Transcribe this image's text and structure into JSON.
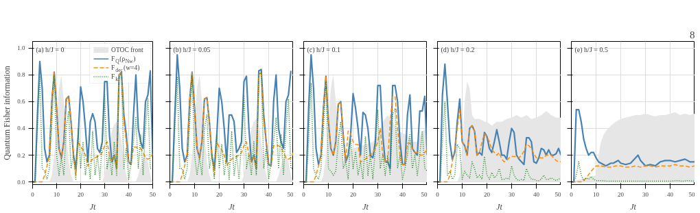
{
  "chart_data": [
    {
      "type": "line",
      "title": "(a) h/J = 0",
      "xlabel": "Jt",
      "ylabel": "Quantum Fisher information",
      "xlim": [
        0,
        50
      ],
      "xticks": [
        0,
        10,
        20,
        30,
        40,
        50
      ],
      "ylim": [
        -0.02,
        1.05
      ],
      "yticks": [
        {
          "value": 0,
          "label": "0.0"
        },
        {
          "value": 0.2,
          "label": "0.2"
        },
        {
          "value": 0.4,
          "label": "0.4"
        },
        {
          "value": 0.6,
          "label": "0.6"
        },
        {
          "value": 0.8,
          "label": "0.8"
        },
        {
          "value": 1,
          "label": "1.0"
        }
      ],
      "grid": true,
      "legend": "top right",
      "x": [
        0,
        1,
        2,
        3,
        4,
        5,
        6,
        7,
        8,
        9,
        10,
        11,
        12,
        13,
        14,
        15,
        16,
        17,
        18,
        19,
        20,
        21,
        22,
        23,
        24,
        25,
        26,
        27,
        28,
        29,
        30,
        31,
        32,
        33,
        34,
        35,
        36,
        37,
        38,
        39,
        40,
        41,
        42,
        43,
        44,
        45,
        46,
        47,
        48,
        49,
        50
      ],
      "series": [
        {
          "name": "OTOC front",
          "type": "area",
          "color": "#e6e6e6",
          "x": [
            0,
            7,
            8,
            9,
            10,
            11,
            12,
            13,
            14,
            15,
            16,
            17,
            29,
            30,
            31,
            32,
            33,
            34,
            35,
            36,
            37,
            38,
            39,
            40,
            43,
            44,
            45,
            46,
            47,
            48,
            49,
            50
          ],
          "values": [
            0,
            0,
            0.05,
            0.2,
            0.45,
            0.7,
            0.8,
            0.6,
            0.35,
            0.15,
            0.05,
            0,
            0,
            0.05,
            0.15,
            0.28,
            0.38,
            0.43,
            0.45,
            0.4,
            0.3,
            0.15,
            0.05,
            0,
            0,
            0.05,
            0.12,
            0.18,
            0.2,
            0.15,
            0.05,
            0
          ]
        },
        {
          "name": "F$_{Q}$(ρ$_{Nw}$)",
          "line_style": "solid",
          "color": "#4682b4",
          "values": [
            0,
            0,
            0.5,
            0.9,
            0.7,
            0.25,
            0.15,
            0.2,
            0.6,
            0.82,
            0.55,
            0.25,
            0.18,
            0.3,
            0.62,
            0.64,
            0.45,
            0.2,
            0.1,
            0.35,
            0.71,
            0.6,
            0.4,
            0.15,
            0.45,
            0.51,
            0.45,
            0.25,
            0.22,
            0.3,
            0.75,
            0.75,
            0.35,
            0.15,
            0.2,
            0.1,
            0.8,
            0.82,
            0.5,
            0.35,
            0.15,
            0.13,
            0.5,
            0.8,
            0.4,
            0.3,
            0.25,
            0.6,
            0.65,
            0.83,
            0.2
          ]
        },
        {
          "name": "F$_{dec}$(w=4)",
          "line_style": "dashed",
          "color": "#ff8c00",
          "values": [
            0,
            0,
            0,
            0,
            0,
            0.05,
            0.12,
            0.2,
            0.6,
            0.82,
            0.55,
            0.25,
            0.18,
            0.3,
            0.62,
            0.64,
            0.45,
            0.2,
            0.05,
            0.3,
            0.26,
            0.24,
            0.2,
            0.12,
            0.15,
            0.17,
            0.18,
            0.19,
            0.2,
            0.22,
            0.27,
            0.3,
            0.2,
            0.15,
            0.2,
            0.1,
            0.8,
            0.82,
            0.45,
            0.3,
            0.15,
            0.13,
            0.26,
            0.26,
            0.25,
            0.25,
            0.22,
            0.18,
            0.17,
            0.18,
            0.21
          ]
        },
        {
          "name": "F$_{k}$",
          "line_style": "dotted",
          "color": "#228b22",
          "values": [
            0,
            0,
            0.4,
            0.79,
            0.1,
            0.08,
            0.02,
            0.1,
            0.43,
            0.8,
            0.2,
            0.05,
            0.18,
            0.05,
            0.4,
            0.53,
            0.1,
            0.2,
            0.02,
            0.4,
            0.1,
            0.3,
            0.05,
            0.2,
            0.02,
            0.38,
            0.05,
            0.2,
            0.02,
            0.3,
            0.65,
            0.1,
            0.2,
            0.05,
            0.3,
            0.05,
            0.78,
            0.81,
            0.1,
            0.25,
            0.02,
            0.15,
            0.3,
            0.48,
            0.1,
            0.35,
            0.05,
            0.4,
            0.62,
            0.1,
            0.1
          ]
        }
      ]
    },
    {
      "type": "line",
      "title": "(b) h/J = 0.05",
      "xlabel": "Jt",
      "xlim": [
        0,
        50
      ],
      "xticks": [
        0,
        10,
        20,
        30,
        40,
        50
      ],
      "ylim": [
        -0.02,
        1.05
      ],
      "yticks": [
        0,
        0.2,
        0.4,
        0.6,
        0.8,
        1
      ],
      "grid": true,
      "tick_labels": "x",
      "x": [
        0,
        1,
        2,
        3,
        4,
        5,
        6,
        7,
        8,
        9,
        10,
        11,
        12,
        13,
        14,
        15,
        16,
        17,
        18,
        19,
        20,
        21,
        22,
        23,
        24,
        25,
        26,
        27,
        28,
        29,
        30,
        31,
        32,
        33,
        34,
        35,
        36,
        37,
        38,
        39,
        40,
        41,
        42,
        43,
        44,
        45,
        46,
        47,
        48,
        49,
        50
      ],
      "series": [
        {
          "type": "area",
          "color": "#e6e6e6",
          "x": [
            0,
            7,
            8,
            9,
            10,
            11,
            12,
            13,
            14,
            15,
            16,
            17,
            29,
            30,
            31,
            32,
            33,
            34,
            35,
            36,
            37,
            38,
            39,
            40,
            43,
            44,
            45,
            46,
            47,
            48,
            49,
            50
          ],
          "values": [
            0,
            0,
            0.05,
            0.2,
            0.45,
            0.7,
            0.8,
            0.6,
            0.35,
            0.15,
            0.05,
            0,
            0,
            0.05,
            0.15,
            0.28,
            0.4,
            0.45,
            0.47,
            0.42,
            0.3,
            0.15,
            0.05,
            0,
            0,
            0.05,
            0.12,
            0.18,
            0.2,
            0.15,
            0.05,
            0
          ]
        },
        {
          "line_style": "solid",
          "color": "#4682b4",
          "values": [
            0,
            0,
            0.5,
            0.95,
            0.7,
            0.25,
            0.15,
            0.2,
            0.6,
            0.82,
            0.55,
            0.25,
            0.18,
            0.3,
            0.62,
            0.63,
            0.45,
            0.2,
            0.1,
            0.35,
            0.7,
            0.6,
            0.4,
            0.15,
            0.5,
            0.5,
            0.45,
            0.22,
            0.25,
            0.3,
            0.75,
            0.79,
            0.4,
            0.15,
            0.2,
            0.1,
            0.83,
            0.84,
            0.5,
            0.3,
            0.13,
            0.12,
            0.6,
            0.8,
            0.4,
            0.3,
            0.25,
            0.6,
            0.65,
            0.83,
            null
          ]
        },
        {
          "line_style": "dashed",
          "color": "#ff8c00",
          "values": [
            0,
            0,
            0,
            0,
            0,
            0.05,
            0.12,
            0.2,
            0.6,
            0.82,
            0.55,
            0.25,
            0.18,
            0.3,
            0.62,
            0.63,
            0.45,
            0.2,
            0.05,
            0.3,
            0.26,
            0.24,
            0.2,
            0.12,
            0.15,
            0.17,
            0.18,
            0.19,
            0.2,
            0.22,
            0.27,
            0.3,
            0.2,
            0.15,
            0.2,
            0.1,
            0.8,
            0.82,
            0.45,
            0.3,
            0.13,
            0.12,
            0.27,
            0.27,
            0.27,
            0.26,
            0.22,
            0.18,
            0.17,
            0.18,
            0.22
          ]
        },
        {
          "line_style": "dotted",
          "color": "#228b22",
          "values": [
            0,
            0,
            0.4,
            0.78,
            0.1,
            0.1,
            0.02,
            0.1,
            0.43,
            0.8,
            0.2,
            0.05,
            0.18,
            0.05,
            0.4,
            0.5,
            0.1,
            0.2,
            0.02,
            0.35,
            0.1,
            0.28,
            0.05,
            0.2,
            0.02,
            0.38,
            0.05,
            0.2,
            0.02,
            0.3,
            0.64,
            0.1,
            0.2,
            0.05,
            0.3,
            0.05,
            0.8,
            0.82,
            0.1,
            0.25,
            0.02,
            0.15,
            0.3,
            0.48,
            0.1,
            0.35,
            0.05,
            0.4,
            0.62,
            0.1,
            0.1
          ]
        }
      ]
    },
    {
      "type": "line",
      "title": "(c) h/J = 0.1",
      "xlabel": "Jt",
      "xlim": [
        0,
        50
      ],
      "xticks": [
        0,
        10,
        20,
        30,
        40,
        50
      ],
      "ylim": [
        -0.02,
        1.05
      ],
      "yticks": [
        0,
        0.2,
        0.4,
        0.6,
        0.8,
        1
      ],
      "grid": true,
      "tick_labels": "x",
      "x": [
        0,
        1,
        2,
        3,
        4,
        5,
        6,
        7,
        8,
        9,
        10,
        11,
        12,
        13,
        14,
        15,
        16,
        17,
        18,
        19,
        20,
        21,
        22,
        23,
        24,
        25,
        26,
        27,
        28,
        29,
        30,
        31,
        32,
        33,
        34,
        35,
        36,
        37,
        38,
        39,
        40,
        41,
        42,
        43,
        44,
        45,
        46,
        47,
        48,
        49,
        50
      ],
      "series": [
        {
          "type": "area",
          "color": "#e6e6e6",
          "x": [
            0,
            7,
            8,
            9,
            10,
            11,
            12,
            13,
            14,
            15,
            16,
            17,
            18,
            20,
            25,
            28,
            30,
            32,
            34,
            36,
            38,
            42,
            44,
            46,
            48,
            50
          ],
          "values": [
            0,
            0,
            0.05,
            0.2,
            0.45,
            0.7,
            0.8,
            0.6,
            0.4,
            0.25,
            0.15,
            0.2,
            0.2,
            0.25,
            0.28,
            0.3,
            0.35,
            0.45,
            0.5,
            0.45,
            0.38,
            0.35,
            0.3,
            0.3,
            0.38,
            0.4
          ]
        },
        {
          "line_style": "solid",
          "color": "#4682b4",
          "values": [
            0,
            0,
            0.55,
            0.95,
            0.7,
            0.25,
            0.13,
            0.2,
            0.55,
            0.79,
            0.45,
            0.25,
            0.2,
            0.3,
            0.58,
            0.6,
            0.35,
            0.15,
            0.2,
            0.35,
            0.66,
            0.55,
            0.4,
            0.2,
            0.52,
            0.5,
            0.4,
            0.2,
            0.18,
            0.3,
            0.72,
            0.72,
            0.35,
            0.15,
            0.15,
            0.1,
            0.72,
            0.72,
            0.6,
            0.3,
            0.13,
            0.13,
            0.5,
            0.65,
            0.25,
            0.22,
            0.2,
            0.53,
            0.53,
            0.64,
            0.2
          ]
        },
        {
          "line_style": "dashed",
          "color": "#ff8c00",
          "values": [
            0,
            0,
            0,
            0,
            0,
            0.05,
            0.12,
            0.2,
            0.55,
            0.79,
            0.45,
            0.25,
            0.2,
            0.3,
            0.58,
            0.6,
            0.35,
            0.15,
            0.38,
            0.36,
            0.3,
            0.28,
            0.28,
            0.15,
            0.16,
            0.17,
            0.19,
            0.2,
            0.22,
            0.25,
            0.3,
            0.4,
            0.2,
            0.15,
            0.15,
            0.45,
            0.64,
            0.64,
            0.4,
            0.2,
            0.13,
            0.13,
            0.29,
            0.29,
            0.25,
            0.22,
            0.22,
            0.2,
            0.2,
            0.22,
            0.24
          ]
        },
        {
          "line_style": "dotted",
          "color": "#228b22",
          "values": [
            0,
            0,
            0.3,
            0.74,
            0.1,
            0.05,
            0.02,
            0.1,
            0.4,
            0.75,
            0.1,
            0.08,
            0.05,
            0.08,
            0.3,
            0.45,
            0.1,
            0.15,
            0.02,
            0.32,
            0.1,
            0.22,
            0.05,
            0.15,
            0.02,
            0.34,
            0.05,
            0.2,
            0.02,
            0.25,
            0.54,
            0.1,
            0.2,
            0.05,
            0.2,
            0.05,
            0.5,
            0.55,
            0.1,
            0.2,
            0.02,
            0.1,
            0.2,
            0.36,
            0.1,
            0.2,
            0.05,
            0.2,
            0.38,
            0.1,
            0.08
          ]
        }
      ]
    },
    {
      "type": "line",
      "title": "(d) h/J = 0.2",
      "xlabel": "Jt",
      "xlim": [
        0,
        50
      ],
      "xticks": [
        0,
        10,
        20,
        30,
        40,
        50
      ],
      "ylim": [
        -0.02,
        1.05
      ],
      "yticks": [
        0,
        0.2,
        0.4,
        0.6,
        0.8,
        1
      ],
      "grid": true,
      "tick_labels": "x",
      "x": [
        0,
        1,
        2,
        3,
        4,
        5,
        6,
        7,
        8,
        9,
        10,
        11,
        12,
        13,
        14,
        15,
        16,
        17,
        18,
        19,
        20,
        21,
        22,
        23,
        24,
        25,
        26,
        27,
        28,
        29,
        30,
        31,
        32,
        33,
        34,
        35,
        36,
        37,
        38,
        39,
        40,
        41,
        42,
        43,
        44,
        45,
        46,
        47,
        48,
        49,
        50
      ],
      "series": [
        {
          "type": "area",
          "color": "#e6e6e6",
          "x": [
            0,
            8,
            9,
            10,
            11,
            12,
            13,
            14,
            15,
            17,
            19,
            20,
            22,
            24,
            26,
            28,
            30,
            32,
            34,
            36,
            38,
            40,
            42,
            44,
            46,
            48,
            50
          ],
          "values": [
            0,
            0,
            0.05,
            0.2,
            0.6,
            0.75,
            0.7,
            0.5,
            0.47,
            0.47,
            0.45,
            0.45,
            0.42,
            0.45,
            0.45,
            0.47,
            0.48,
            0.5,
            0.48,
            0.5,
            0.47,
            0.48,
            0.5,
            0.53,
            0.5,
            0.48,
            0.48
          ]
        },
        {
          "line_style": "solid",
          "color": "#4682b4",
          "values": [
            0,
            0,
            0.65,
            0.88,
            0.6,
            0.3,
            0.17,
            0.22,
            0.45,
            0.62,
            0.3,
            0.27,
            0.2,
            0.4,
            0.42,
            0.38,
            0.2,
            0.22,
            0.2,
            0.37,
            0.34,
            0.25,
            0.22,
            0.3,
            0.39,
            0.3,
            0.2,
            0.2,
            0.17,
            0.3,
            0.4,
            0.37,
            0.2,
            0.17,
            0.15,
            0.13,
            0.33,
            0.33,
            0.3,
            0.15,
            0.14,
            0.18,
            0.25,
            0.24,
            0.2,
            0.24,
            0.2,
            0.2,
            0.21,
            0.25,
            0.2
          ]
        },
        {
          "line_style": "dashed",
          "color": "#ff8c00",
          "values": [
            0,
            0,
            0,
            0,
            0,
            0.05,
            0.15,
            0.25,
            0.4,
            0.55,
            0.3,
            0.27,
            0.2,
            0.4,
            0.42,
            0.38,
            0.2,
            0.22,
            0.3,
            0.36,
            0.34,
            0.3,
            0.24,
            0.22,
            0.2,
            0.22,
            0.17,
            0.15,
            0.16,
            0.18,
            0.19,
            0.19,
            0.19,
            0.18,
            0.2,
            0.23,
            0.28,
            0.27,
            0.25,
            0.21,
            0.18,
            0.18,
            0.18,
            0.18,
            0.2,
            0.2,
            0.2,
            0.18,
            0.16,
            0.15,
            0.15
          ]
        },
        {
          "line_style": "dotted",
          "color": "#228b22",
          "values": [
            0,
            0,
            0.3,
            0.6,
            0.05,
            0.08,
            0.02,
            0.05,
            0.28,
            0.25,
            0.02,
            0.08,
            0.05,
            0.03,
            0.15,
            0.1,
            0.03,
            0.05,
            0.02,
            0.19,
            0.05,
            0.02,
            0.07,
            0.03,
            0.05,
            0.1,
            0.02,
            0.02,
            0.03,
            0.02,
            0.12,
            0.05,
            0.02,
            0.01,
            0.02,
            0.01,
            0.1,
            0.05,
            0.02,
            0.02,
            0.01,
            0.01,
            0.02,
            0.05,
            0.02,
            0.02,
            0.03,
            0.02,
            0.01,
            0.02,
            0.03
          ]
        }
      ]
    },
    {
      "type": "line",
      "title": "(e) h/J = 0.5",
      "xlabel": "Jt",
      "annotations": [
        "8"
      ],
      "xlim": [
        0,
        50
      ],
      "xticks": [
        0,
        10,
        20,
        30,
        40,
        50
      ],
      "ylim": [
        -0.02,
        1.05
      ],
      "yticks": [
        0,
        0.2,
        0.4,
        0.6,
        0.8,
        1
      ],
      "grid": true,
      "tick_labels": "x",
      "series": [
        {
          "type": "area",
          "color": "#e6e6e6",
          "x": [
            0,
            10,
            11,
            12,
            13,
            14,
            16,
            18,
            20,
            22,
            24,
            26,
            28,
            30,
            32,
            34,
            36,
            38,
            40,
            42,
            44,
            46,
            48,
            50
          ],
          "values": [
            0,
            0.05,
            0.2,
            0.3,
            0.35,
            0.38,
            0.42,
            0.45,
            0.47,
            0.48,
            0.49,
            0.5,
            0.5,
            0.51,
            0.5,
            0.49,
            0.5,
            0.5,
            0.51,
            0.52,
            0.5,
            0.51,
            0.5,
            0.51
          ]
        },
        {
          "line_style": "solid",
          "color": "#4682b4",
          "x": [
            0,
            1,
            2,
            3,
            4,
            5,
            6,
            7,
            8,
            9,
            10,
            11,
            12,
            13,
            14,
            15,
            16,
            17,
            18,
            19,
            20,
            22,
            24,
            26,
            27,
            28,
            30,
            32,
            34,
            36,
            38,
            40,
            42,
            44,
            46,
            48,
            50
          ],
          "values": [
            0,
            0,
            0.54,
            0.54,
            0.45,
            0.32,
            0.25,
            0.2,
            0.22,
            0.22,
            0.18,
            0.15,
            0.14,
            0.13,
            0.12,
            0.13,
            0.14,
            0.14,
            0.15,
            0.16,
            0.14,
            0.13,
            0.14,
            0.18,
            0.2,
            0.16,
            0.12,
            0.13,
            0.12,
            0.15,
            0.16,
            0.16,
            0.15,
            0.16,
            0.17,
            0.15,
            0.15
          ]
        },
        {
          "line_style": "dashed",
          "color": "#ff8c00",
          "x": [
            0,
            4,
            5,
            6,
            8,
            10,
            12,
            14,
            16,
            18,
            20,
            22,
            24,
            26,
            28,
            30,
            32,
            34,
            36,
            38,
            40,
            42,
            44,
            46,
            48,
            50
          ],
          "values": [
            0,
            0,
            0.01,
            0.03,
            0.08,
            0.12,
            0.12,
            0.11,
            0.11,
            0.12,
            0.12,
            0.11,
            0.11,
            0.12,
            0.11,
            0.12,
            0.12,
            0.11,
            0.12,
            0.12,
            0.12,
            0.13,
            0.12,
            0.12,
            0.11,
            0.12
          ]
        },
        {
          "line_style": "dotted",
          "color": "#228b22",
          "x": [
            0,
            1,
            2,
            3,
            4,
            5,
            6,
            7,
            8,
            9,
            10,
            12,
            15,
            20,
            30,
            40,
            43,
            45,
            47,
            50
          ],
          "values": [
            0,
            0,
            0.05,
            0.15,
            0.05,
            0.01,
            0.03,
            0.02,
            0.04,
            0.02,
            0.01,
            0.01,
            0.005,
            0.005,
            0.005,
            0.005,
            0.01,
            0.005,
            0.01,
            0.005
          ]
        }
      ]
    }
  ]
}
